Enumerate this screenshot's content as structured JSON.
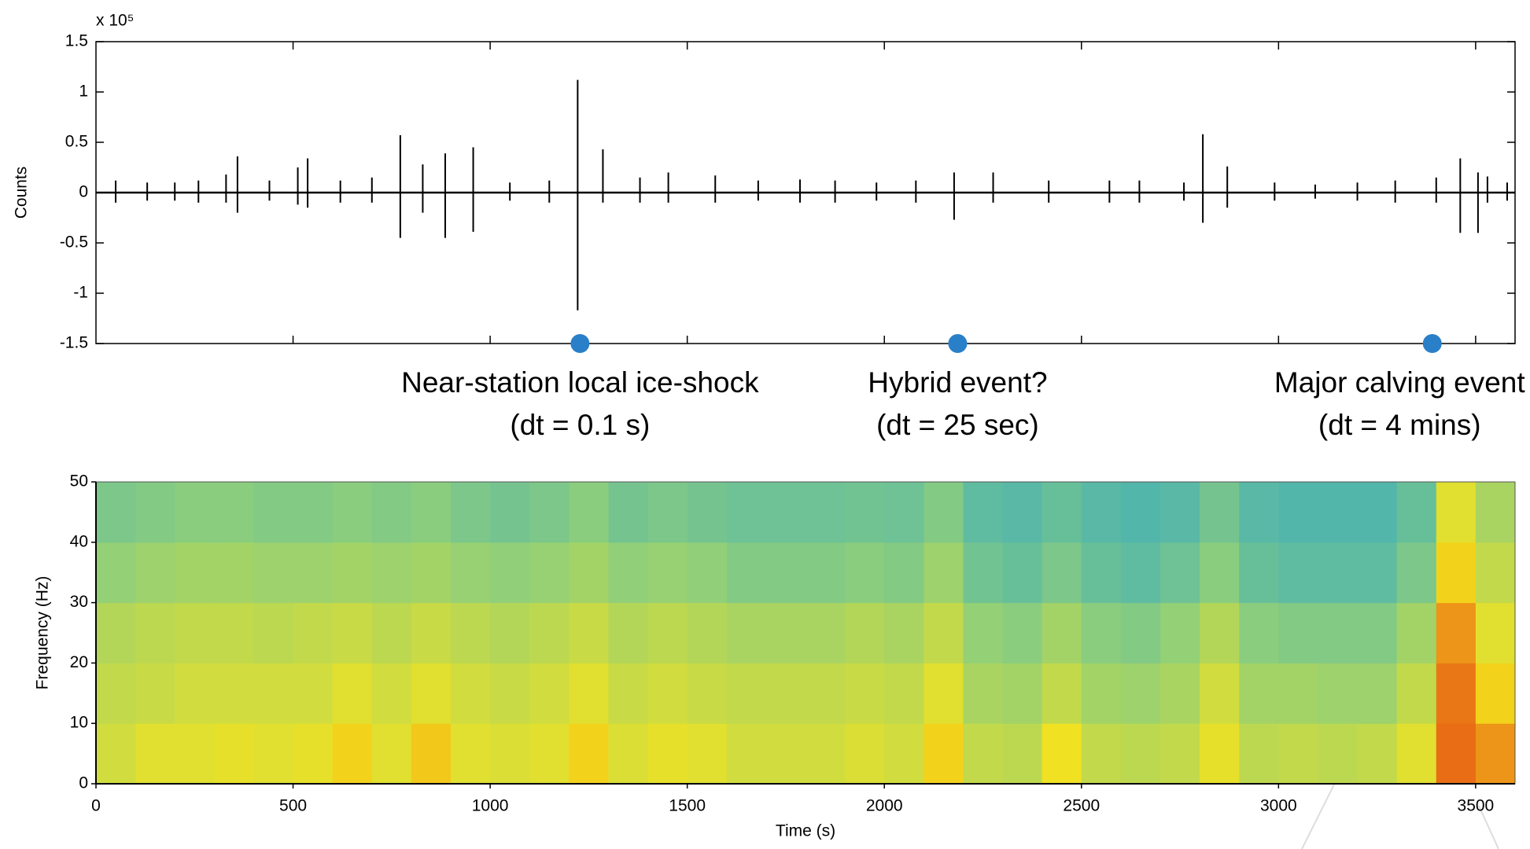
{
  "chart_data": [
    {
      "type": "spike",
      "y_label": "Counts",
      "y_multiplier": "x 10⁵",
      "x": [
        50,
        130,
        200,
        260,
        330,
        359,
        440,
        512,
        537,
        620,
        700,
        772,
        829,
        886,
        957,
        1050,
        1150,
        1222,
        1286,
        1380,
        1452,
        1571,
        1680,
        1786,
        1875,
        1980,
        2080,
        2177,
        2276,
        2417,
        2571,
        2647,
        2760,
        2808,
        2870,
        2990,
        3093,
        3200,
        3296,
        3400,
        3461,
        3506,
        3530,
        3580
      ],
      "values": [
        0.12,
        0.1,
        0.1,
        0.12,
        0.18,
        0.36,
        0.12,
        0.25,
        0.34,
        0.12,
        0.15,
        0.57,
        0.28,
        0.39,
        0.45,
        0.1,
        0.12,
        1.12,
        0.43,
        0.15,
        0.2,
        0.17,
        0.12,
        0.13,
        0.12,
        0.1,
        0.12,
        0.2,
        0.2,
        0.12,
        0.12,
        0.12,
        0.1,
        0.58,
        0.26,
        0.1,
        0.08,
        0.1,
        0.12,
        0.15,
        0.34,
        0.2,
        0.16,
        0.1
      ],
      "lower_values": [
        -0.1,
        -0.08,
        -0.08,
        -0.1,
        -0.1,
        -0.2,
        -0.08,
        -0.12,
        -0.15,
        -0.1,
        -0.1,
        -0.45,
        -0.2,
        -0.45,
        -0.39,
        -0.08,
        -0.1,
        -1.17,
        -0.1,
        -0.1,
        -0.1,
        -0.1,
        -0.08,
        -0.1,
        -0.1,
        -0.08,
        -0.1,
        -0.27,
        -0.1,
        -0.1,
        -0.1,
        -0.1,
        -0.08,
        -0.3,
        -0.15,
        -0.08,
        -0.06,
        -0.08,
        -0.1,
        -0.1,
        -0.4,
        -0.4,
        -0.1,
        -0.08
      ],
      "color": "#000000",
      "xlim": [
        0,
        3600
      ],
      "xticks": [
        500,
        1000,
        1500,
        2000,
        2500,
        3000,
        3500
      ],
      "ylim": [
        -1.5,
        1.5
      ],
      "yticks": [
        1.5,
        1,
        0.5,
        0,
        -0.5,
        -1,
        -1.5
      ],
      "marker_color": "#2a7fc9",
      "annotations": [
        {
          "x": 1228,
          "label": "Near-station local ice-shock",
          "detail": "(dt = 0.1 s)"
        },
        {
          "x": 2186,
          "label": "Hybrid event?",
          "detail": "(dt = 25 sec)"
        },
        {
          "x": 3390,
          "label": "Major calving event",
          "detail": "(dt = 4 mins)"
        }
      ]
    },
    {
      "type": "heatmap",
      "x_label": "Time (s)",
      "y_label": "Frequency (Hz)",
      "x_bins": [
        0,
        100,
        200,
        300,
        400,
        500,
        600,
        700,
        800,
        900,
        1000,
        1100,
        1200,
        1300,
        1400,
        1500,
        1600,
        1700,
        1800,
        1900,
        2000,
        2100,
        2200,
        2300,
        2400,
        2500,
        2600,
        2700,
        2800,
        2900,
        3000,
        3100,
        3200,
        3300,
        3400,
        3500,
        3600
      ],
      "y_bins": [
        0,
        10,
        20,
        30,
        40,
        50
      ],
      "values": [
        [
          0.55,
          0.6,
          0.6,
          0.62,
          0.6,
          0.62,
          0.7,
          0.6,
          0.72,
          0.6,
          0.58,
          0.6,
          0.7,
          0.58,
          0.62,
          0.6,
          0.55,
          0.55,
          0.55,
          0.58,
          0.55,
          0.7,
          0.5,
          0.48,
          0.65,
          0.5,
          0.48,
          0.5,
          0.62,
          0.48,
          0.5,
          0.48,
          0.5,
          0.6,
          0.9,
          0.82
        ],
        [
          0.5,
          0.52,
          0.55,
          0.55,
          0.55,
          0.55,
          0.6,
          0.55,
          0.6,
          0.55,
          0.52,
          0.55,
          0.6,
          0.52,
          0.55,
          0.52,
          0.5,
          0.5,
          0.5,
          0.52,
          0.5,
          0.6,
          0.42,
          0.4,
          0.5,
          0.4,
          0.38,
          0.42,
          0.55,
          0.4,
          0.4,
          0.38,
          0.38,
          0.5,
          0.88,
          0.7
        ],
        [
          0.45,
          0.48,
          0.5,
          0.5,
          0.48,
          0.5,
          0.52,
          0.48,
          0.52,
          0.48,
          0.45,
          0.48,
          0.52,
          0.45,
          0.48,
          0.45,
          0.42,
          0.42,
          0.42,
          0.45,
          0.42,
          0.5,
          0.35,
          0.32,
          0.4,
          0.32,
          0.3,
          0.35,
          0.45,
          0.32,
          0.3,
          0.3,
          0.3,
          0.4,
          0.82,
          0.6
        ],
        [
          0.35,
          0.38,
          0.4,
          0.4,
          0.38,
          0.38,
          0.4,
          0.38,
          0.4,
          0.36,
          0.34,
          0.36,
          0.4,
          0.34,
          0.36,
          0.34,
          0.3,
          0.3,
          0.3,
          0.32,
          0.3,
          0.38,
          0.25,
          0.22,
          0.28,
          0.22,
          0.2,
          0.24,
          0.32,
          0.22,
          0.2,
          0.2,
          0.2,
          0.28,
          0.7,
          0.5
        ],
        [
          0.28,
          0.3,
          0.32,
          0.32,
          0.3,
          0.3,
          0.32,
          0.3,
          0.32,
          0.28,
          0.26,
          0.28,
          0.32,
          0.26,
          0.28,
          0.26,
          0.24,
          0.24,
          0.24,
          0.25,
          0.24,
          0.3,
          0.2,
          0.18,
          0.22,
          0.18,
          0.16,
          0.18,
          0.26,
          0.18,
          0.16,
          0.16,
          0.16,
          0.22,
          0.6,
          0.42
        ]
      ],
      "colormap": [
        "#1a9fd9",
        "#8fcf7a",
        "#f5e31d",
        "#e23a12"
      ],
      "xlim": [
        0,
        3600
      ],
      "xticks": [
        0,
        500,
        1000,
        1500,
        2000,
        2500,
        3000,
        3500
      ],
      "ylim": [
        0,
        50
      ],
      "yticks": [
        0,
        10,
        20,
        30,
        40,
        50
      ]
    }
  ]
}
